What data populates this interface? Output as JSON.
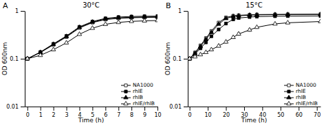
{
  "chart_data": [
    {
      "type": "line",
      "title": "30°C",
      "x_label": "Time (h)",
      "y_label": "OD 600nm",
      "annotations": [
        "A"
      ],
      "log": "y",
      "legend": "lower right",
      "xlim": [
        -0.2,
        10
      ],
      "xticks": [
        0,
        1,
        2,
        3,
        4,
        5,
        6,
        7,
        8,
        9,
        10
      ],
      "ylim": [
        0.01,
        1.0
      ],
      "yticks": [
        0.01,
        0.1,
        1
      ],
      "x": [
        0,
        1,
        2,
        3,
        4,
        5,
        6,
        7,
        8,
        9,
        10
      ],
      "series": [
        {
          "name": "NA1000",
          "color": "black",
          "marker": "square-open",
          "values": [
            0.1,
            0.135,
            0.195,
            0.285,
            0.44,
            0.57,
            0.66,
            0.7,
            0.72,
            0.73,
            0.735
          ],
          "errors": [
            0.004,
            0.007,
            0.01,
            0.013,
            0.018,
            0.02,
            0.018,
            0.016,
            0.014,
            0.013,
            0.013
          ]
        },
        {
          "name": "rhlE",
          "color": "black",
          "marker": "square",
          "values": [
            0.1,
            0.138,
            0.205,
            0.3,
            0.465,
            0.6,
            0.7,
            0.745,
            0.765,
            0.775,
            0.78
          ],
          "errors": [
            0.004,
            0.007,
            0.01,
            0.013,
            0.018,
            0.02,
            0.018,
            0.016,
            0.014,
            0.013,
            0.013
          ]
        },
        {
          "name": "rhlB",
          "color": "black",
          "marker": "triangle",
          "values": [
            0.1,
            0.136,
            0.2,
            0.292,
            0.452,
            0.585,
            0.675,
            0.715,
            0.735,
            0.745,
            0.75
          ],
          "errors": [
            0.004,
            0.007,
            0.01,
            0.013,
            0.018,
            0.02,
            0.018,
            0.016,
            0.014,
            0.013,
            0.013
          ]
        },
        {
          "name": "rhlE/rhlB",
          "color": "black",
          "marker": "triangle-open",
          "values": [
            0.1,
            0.118,
            0.155,
            0.215,
            0.325,
            0.435,
            0.525,
            0.575,
            0.605,
            0.62,
            0.63
          ],
          "errors": [
            0.003,
            0.005,
            0.008,
            0.01,
            0.015,
            0.018,
            0.018,
            0.016,
            0.014,
            0.013,
            0.013
          ]
        }
      ]
    },
    {
      "type": "line",
      "title": "15°C",
      "x_label": "Time (h)",
      "y_label": "OD 600nm",
      "annotations": [
        "B"
      ],
      "log": "y",
      "legend": "lower right",
      "xlim": [
        -1,
        72
      ],
      "xticks": [
        0,
        10,
        20,
        30,
        40,
        50,
        60,
        70
      ],
      "ylim": [
        0.01,
        1.0
      ],
      "yticks": [
        0.01,
        0.1,
        1
      ],
      "x": [
        0,
        3,
        6,
        9,
        12,
        16,
        20,
        24,
        27,
        33,
        37,
        47,
        54,
        72
      ],
      "series": [
        {
          "name": "NA1000",
          "color": "black",
          "marker": "square-open",
          "values": [
            0.1,
            0.135,
            0.19,
            0.27,
            0.38,
            0.57,
            0.73,
            0.79,
            0.81,
            0.83,
            0.84,
            0.845,
            0.85,
            0.855
          ],
          "errors": [
            0.004,
            0.007,
            0.01,
            0.013,
            0.016,
            0.022,
            0.025,
            0.02,
            0.018,
            0.016,
            0.015,
            0.015,
            0.015,
            0.015
          ]
        },
        {
          "name": "rhlE",
          "color": "black",
          "marker": "square",
          "values": [
            0.1,
            0.125,
            0.165,
            0.22,
            0.295,
            0.41,
            0.545,
            0.665,
            0.71,
            0.745,
            0.76,
            0.775,
            0.78,
            0.785
          ],
          "errors": [
            0.004,
            0.006,
            0.009,
            0.012,
            0.015,
            0.02,
            0.025,
            0.022,
            0.02,
            0.018,
            0.016,
            0.015,
            0.015,
            0.015
          ]
        },
        {
          "name": "rhlB",
          "color": "black",
          "marker": "triangle",
          "values": [
            0.1,
            0.13,
            0.18,
            0.255,
            0.355,
            0.53,
            0.695,
            0.765,
            0.79,
            0.815,
            0.825,
            0.835,
            0.84,
            0.845
          ],
          "errors": [
            0.004,
            0.007,
            0.01,
            0.013,
            0.016,
            0.022,
            0.025,
            0.02,
            0.018,
            0.016,
            0.015,
            0.015,
            0.015,
            0.015
          ]
        },
        {
          "name": "rhlE/rhlB",
          "color": "black",
          "marker": "triangle-open",
          "values": [
            0.1,
            0.11,
            0.122,
            0.136,
            0.155,
            0.185,
            0.225,
            0.28,
            0.33,
            0.4,
            0.455,
            0.535,
            0.565,
            0.6
          ],
          "errors": [
            0.003,
            0.004,
            0.005,
            0.006,
            0.007,
            0.009,
            0.012,
            0.016,
            0.02,
            0.024,
            0.024,
            0.024,
            0.022,
            0.022
          ]
        }
      ]
    }
  ]
}
